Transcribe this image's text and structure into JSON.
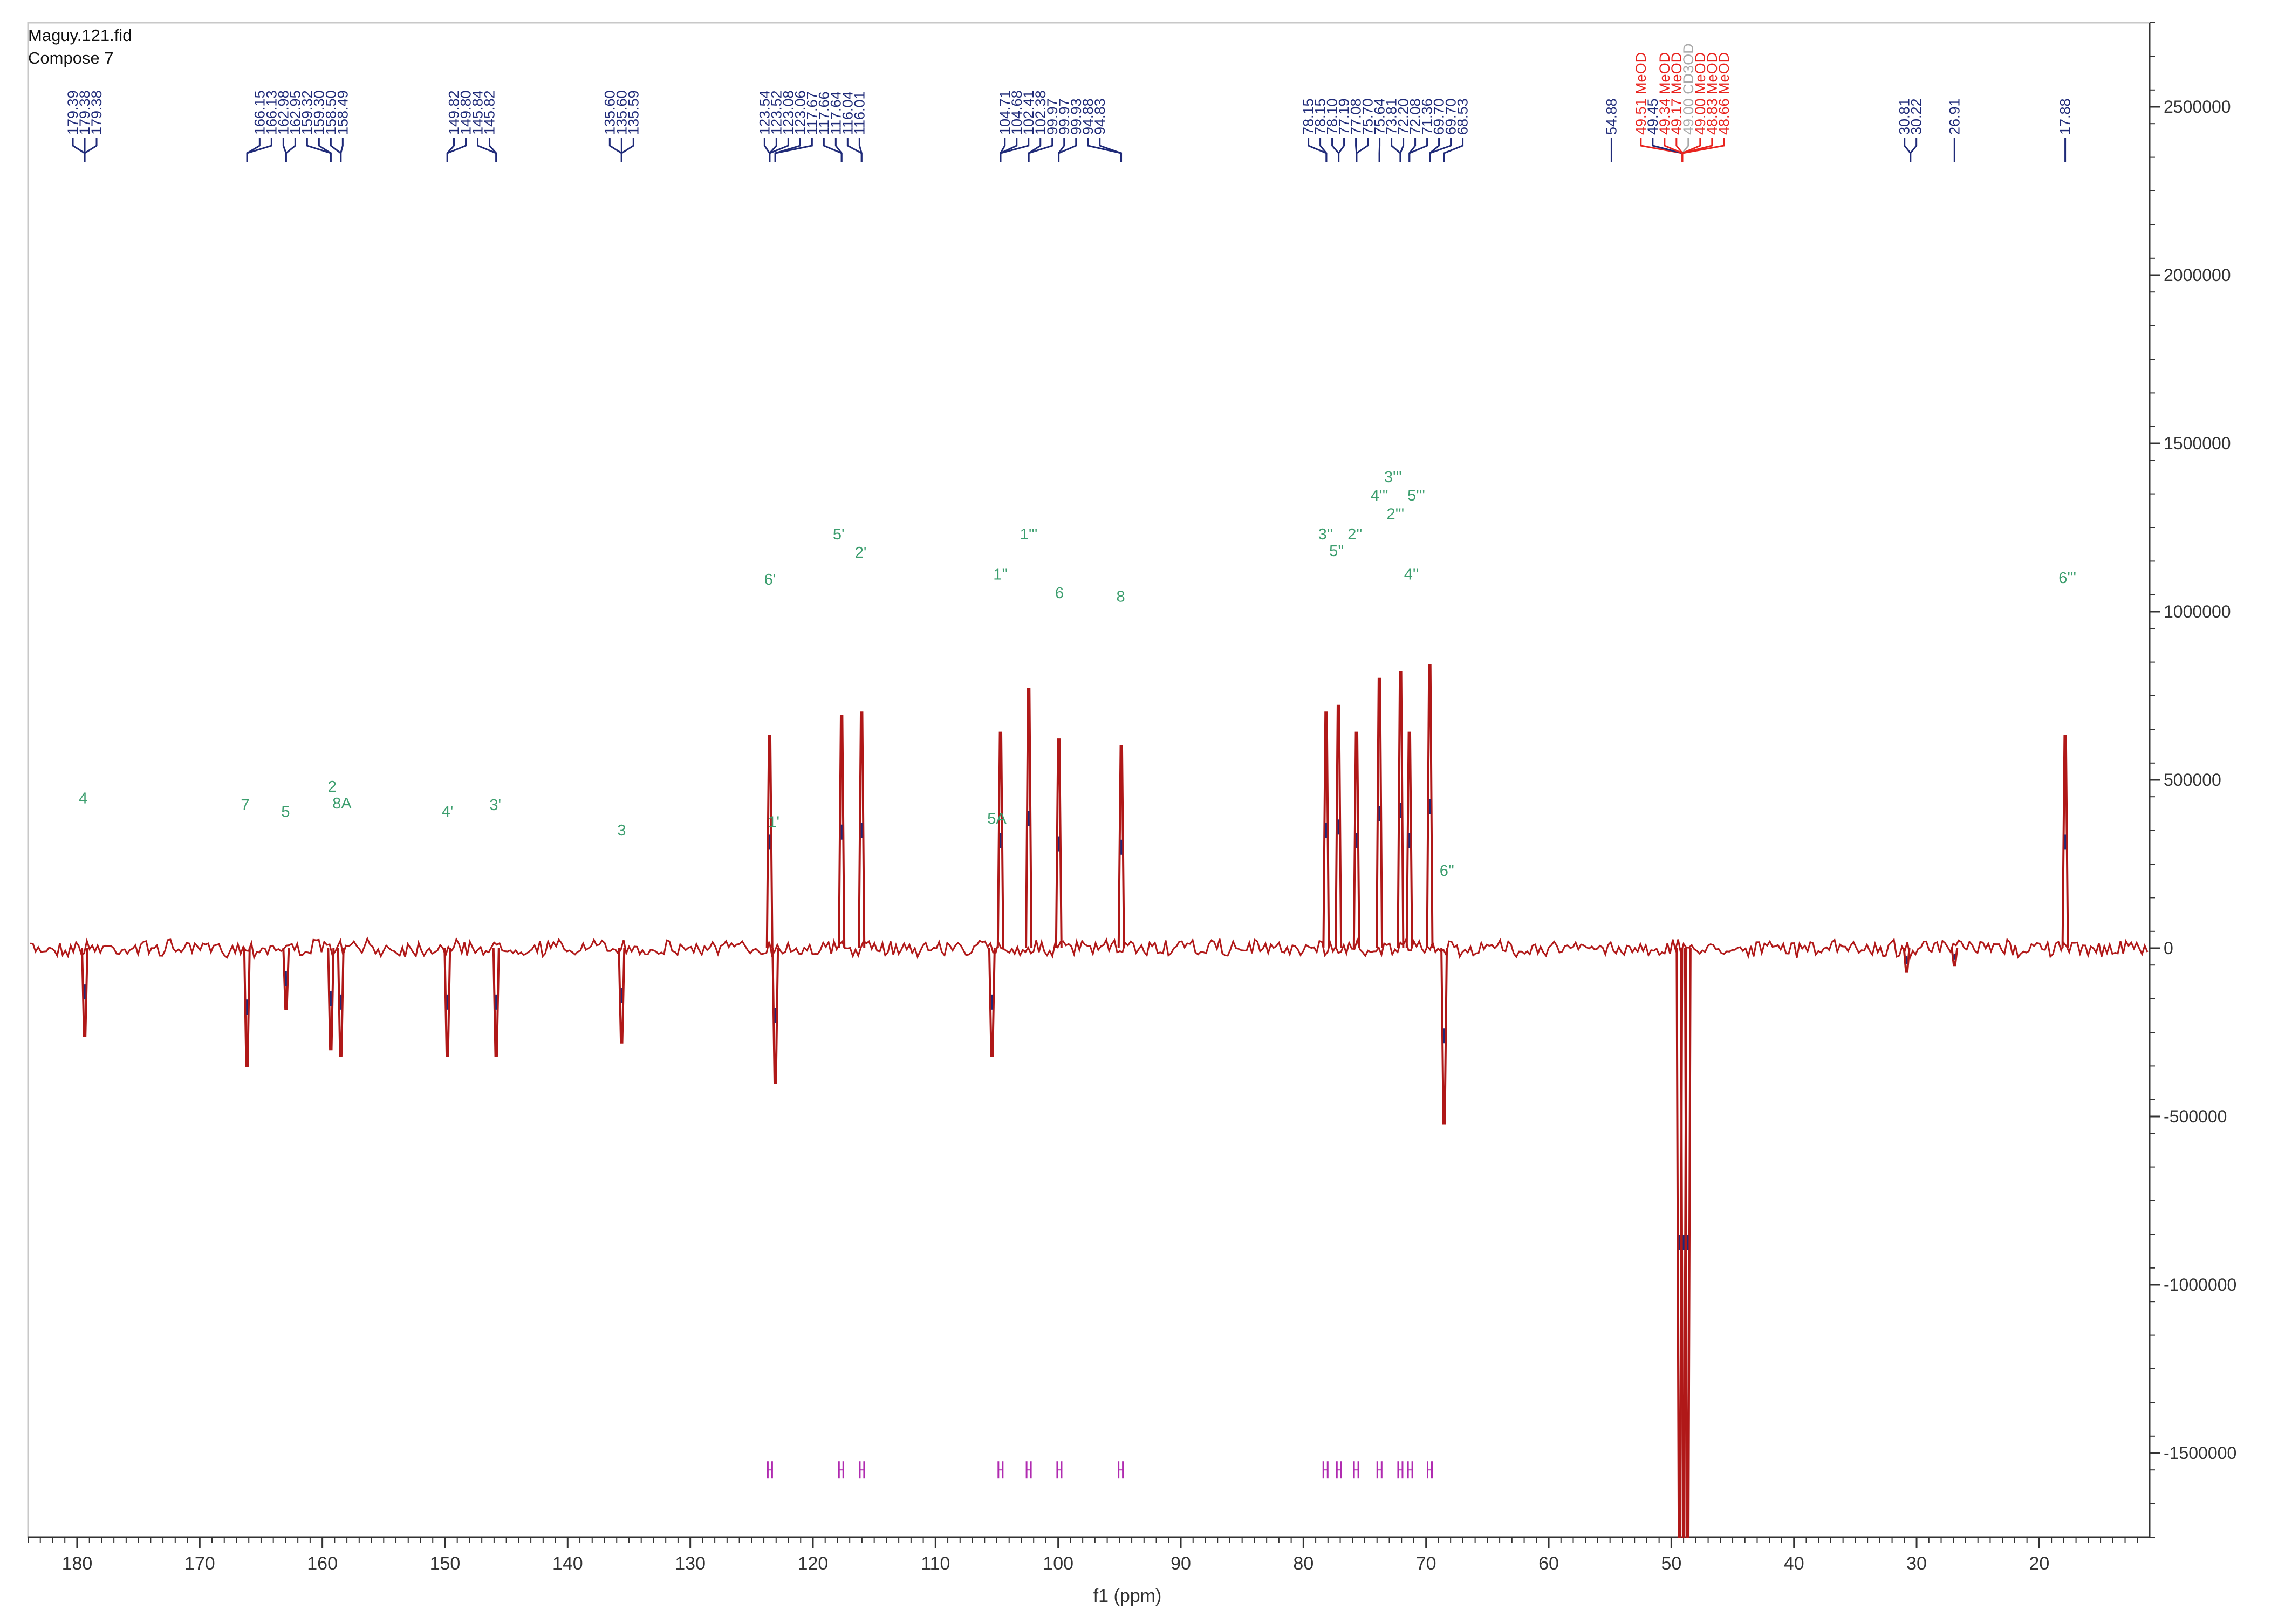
{
  "title_lines": [
    "Maguy.121.fid",
    "Compose 7"
  ],
  "colors": {
    "spectrum": "#b01818",
    "peak_label": "#1f2a78",
    "solvent_label": "#e8231e",
    "reference_label": "#a9a9a9",
    "assignment": "#3c9e6e",
    "integral_marker": "#b02bb0",
    "axis": "#333333",
    "spectrum_accent": "#1f2a78"
  },
  "chart_data": {
    "type": "line",
    "title": "Maguy.121.fid Compose 7",
    "xlabel": "f1 (ppm)",
    "ylabel": "",
    "xlim": [
      184,
      11
    ],
    "ylim": [
      -1750000,
      2750000
    ],
    "x_ticks": [
      180,
      170,
      160,
      150,
      140,
      130,
      120,
      110,
      100,
      90,
      80,
      70,
      60,
      50,
      40,
      30,
      20
    ],
    "y_ticks": [
      2500000,
      2000000,
      1500000,
      1000000,
      500000,
      0,
      -500000,
      -1000000,
      -1500000
    ],
    "y_tick_labels": [
      "2500000",
      "2000000",
      "1500000",
      "1000000",
      "500000",
      "0",
      "-500000",
      "-1000000",
      "-1500000"
    ],
    "peaks": [
      {
        "ppm": 179.38,
        "intensity": -260000
      },
      {
        "ppm": 166.15,
        "intensity": -350000
      },
      {
        "ppm": 162.96,
        "intensity": -180000
      },
      {
        "ppm": 159.31,
        "intensity": -300000
      },
      {
        "ppm": 158.5,
        "intensity": -320000
      },
      {
        "ppm": 149.81,
        "intensity": -320000
      },
      {
        "ppm": 145.83,
        "intensity": -320000
      },
      {
        "ppm": 135.6,
        "intensity": -280000
      },
      {
        "ppm": 123.53,
        "intensity": 630000
      },
      {
        "ppm": 123.07,
        "intensity": -400000
      },
      {
        "ppm": 117.66,
        "intensity": 690000
      },
      {
        "ppm": 116.03,
        "intensity": 700000
      },
      {
        "ppm": 105.4,
        "intensity": -320000
      },
      {
        "ppm": 104.7,
        "intensity": 640000
      },
      {
        "ppm": 102.4,
        "intensity": 770000
      },
      {
        "ppm": 99.95,
        "intensity": 620000
      },
      {
        "ppm": 94.85,
        "intensity": 600000
      },
      {
        "ppm": 78.15,
        "intensity": 700000
      },
      {
        "ppm": 77.15,
        "intensity": 720000
      },
      {
        "ppm": 75.67,
        "intensity": 640000
      },
      {
        "ppm": 73.81,
        "intensity": 800000
      },
      {
        "ppm": 72.08,
        "intensity": 820000
      },
      {
        "ppm": 71.36,
        "intensity": 640000
      },
      {
        "ppm": 69.7,
        "intensity": 840000
      },
      {
        "ppm": 68.53,
        "intensity": -520000
      },
      {
        "ppm": 49.34,
        "intensity": -1750000
      },
      {
        "ppm": 49.0,
        "intensity": -1750000
      },
      {
        "ppm": 48.66,
        "intensity": -1750000
      },
      {
        "ppm": 30.81,
        "intensity": -70000
      },
      {
        "ppm": 26.91,
        "intensity": -50000
      },
      {
        "ppm": 17.88,
        "intensity": 630000
      }
    ],
    "peak_label_groups": [
      {
        "labels": [
          "179.39",
          "179.38",
          "179.38"
        ],
        "target": 179.38,
        "kind": "normal"
      },
      {
        "labels": [
          "166.15",
          "166.13",
          "162.98",
          "162.95",
          "159.32",
          "159.30",
          "158.50",
          "158.49"
        ],
        "target": [
          166.14,
          162.96,
          159.31,
          158.5
        ],
        "kind": "normal"
      },
      {
        "labels": [
          "149.82",
          "149.80",
          "145.84",
          "145.82"
        ],
        "target": [
          149.81,
          145.83
        ],
        "kind": "normal"
      },
      {
        "labels": [
          "135.60",
          "135.60",
          "135.59"
        ],
        "target": 135.6,
        "kind": "normal"
      },
      {
        "labels": [
          "123.54",
          "123.52",
          "123.08",
          "123.06",
          "117.67",
          "117.66",
          "117.64",
          "116.04",
          "116.01"
        ],
        "target": [
          123.53,
          123.07,
          117.66,
          116.03
        ],
        "kind": "normal"
      },
      {
        "labels": [
          "104.71",
          "104.68",
          "102.41",
          "102.38",
          "99.97",
          "99.97",
          "99.93",
          "94.88",
          "94.83"
        ],
        "target": [
          104.7,
          102.4,
          99.96,
          94.86
        ],
        "kind": "normal"
      },
      {
        "labels": [
          "78.15",
          "78.15",
          "78.10",
          "77.19",
          "77.08",
          "75.70",
          "75.64",
          "73.81",
          "72.20",
          "72.08",
          "71.36",
          "69.70",
          "69.70",
          "68.53"
        ],
        "target": [
          78.13,
          77.13,
          75.67,
          73.81,
          72.1,
          71.36,
          69.7,
          68.53
        ],
        "kind": "normal"
      },
      {
        "labels": [
          "54.88"
        ],
        "target": 54.88,
        "kind": "normal"
      },
      {
        "labels": [
          "49.51 MeOD",
          "49.45",
          "49.34 MeOD",
          "49.17 MeOD",
          "49.00 CD3OD",
          "49.00 MeOD",
          "48.83 MeOD",
          "48.66 MeOD"
        ],
        "target": 49.1,
        "kind": "solvent",
        "kinds": [
          "solvent",
          "normal",
          "solvent",
          "solvent",
          "reference",
          "solvent",
          "solvent",
          "solvent"
        ]
      },
      {
        "labels": [
          "30.81",
          "30.22"
        ],
        "target": 30.5,
        "kind": "normal"
      },
      {
        "labels": [
          "26.91"
        ],
        "target": 26.91,
        "kind": "normal"
      },
      {
        "labels": [
          "17.88"
        ],
        "target": 17.88,
        "kind": "normal"
      }
    ],
    "annotations": [
      {
        "text": "4",
        "ppm": 179.5,
        "y": 430000
      },
      {
        "text": "7",
        "ppm": 166.3,
        "y": 410000
      },
      {
        "text": "5",
        "ppm": 163.0,
        "y": 390000
      },
      {
        "text": "2",
        "ppm": 159.2,
        "y": 465000
      },
      {
        "text": "8A",
        "ppm": 158.4,
        "y": 415000
      },
      {
        "text": "4'",
        "ppm": 149.8,
        "y": 390000
      },
      {
        "text": "3'",
        "ppm": 145.9,
        "y": 410000
      },
      {
        "text": "3",
        "ppm": 135.6,
        "y": 335000
      },
      {
        "text": "1'",
        "ppm": 123.2,
        "y": 360000
      },
      {
        "text": "6'",
        "ppm": 123.5,
        "y": 1080000
      },
      {
        "text": "5'",
        "ppm": 117.9,
        "y": 1215000
      },
      {
        "text": "2'",
        "ppm": 116.1,
        "y": 1160000
      },
      {
        "text": "1'''",
        "ppm": 102.4,
        "y": 1215000
      },
      {
        "text": "1''",
        "ppm": 104.7,
        "y": 1095000
      },
      {
        "text": "5A",
        "ppm": 105.0,
        "y": 370000
      },
      {
        "text": "6",
        "ppm": 99.9,
        "y": 1040000
      },
      {
        "text": "8",
        "ppm": 94.9,
        "y": 1030000
      },
      {
        "text": "3''",
        "ppm": 78.2,
        "y": 1215000
      },
      {
        "text": "2''",
        "ppm": 75.8,
        "y": 1215000
      },
      {
        "text": "5''",
        "ppm": 77.3,
        "y": 1165000
      },
      {
        "text": "3'''",
        "ppm": 72.7,
        "y": 1385000
      },
      {
        "text": "4'''",
        "ppm": 73.8,
        "y": 1330000
      },
      {
        "text": "5'''",
        "ppm": 70.8,
        "y": 1330000
      },
      {
        "text": "2'''",
        "ppm": 72.5,
        "y": 1275000
      },
      {
        "text": "4''",
        "ppm": 71.2,
        "y": 1095000
      },
      {
        "text": "6''",
        "ppm": 68.3,
        "y": 215000
      },
      {
        "text": "6'''",
        "ppm": 17.7,
        "y": 1085000
      }
    ],
    "integral_markers": [
      123.5,
      117.7,
      116.0,
      104.7,
      102.4,
      99.9,
      94.9,
      78.2,
      77.1,
      75.7,
      73.8,
      72.1,
      71.3,
      69.7
    ]
  }
}
